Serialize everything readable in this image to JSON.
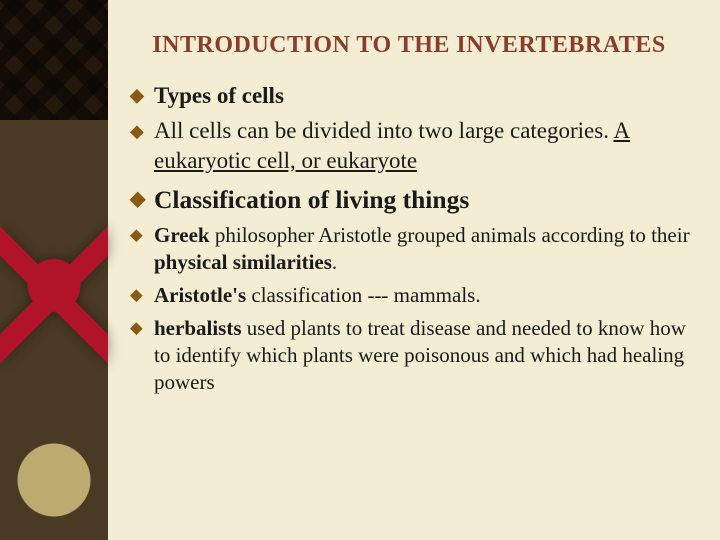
{
  "title_fontsize_pt": 18,
  "title_color": "#8a3d2a",
  "background_color": "#f3edd3",
  "sidebar_color": "#4a3a24",
  "bullet_color": "#8a5a12",
  "text_color": "#1a1a1a",
  "font_family": "Times New Roman",
  "title": "INTRODUCTION TO THE INVERTEBRATES",
  "bullets": {
    "b1": "Types of cells",
    "b2_pre": "All cells can be divided into two large categories. ",
    "b2_underlined": "A eukaryotic cell, or eukaryote",
    "b3": "Classification of living things",
    "b4_bold1": "Greek",
    "b4_mid1": " philosopher Aristotle grouped animals according to their ",
    "b4_bold2": "physical similarities",
    "b4_end": ".",
    "b5_bold": "Aristotle's",
    "b5_rest": " classification --- mammals.",
    "b6_bold": "herbalists",
    "b6_rest": " used plants to treat disease and needed to know how to identify which plants were poisonous and which had healing powers"
  }
}
